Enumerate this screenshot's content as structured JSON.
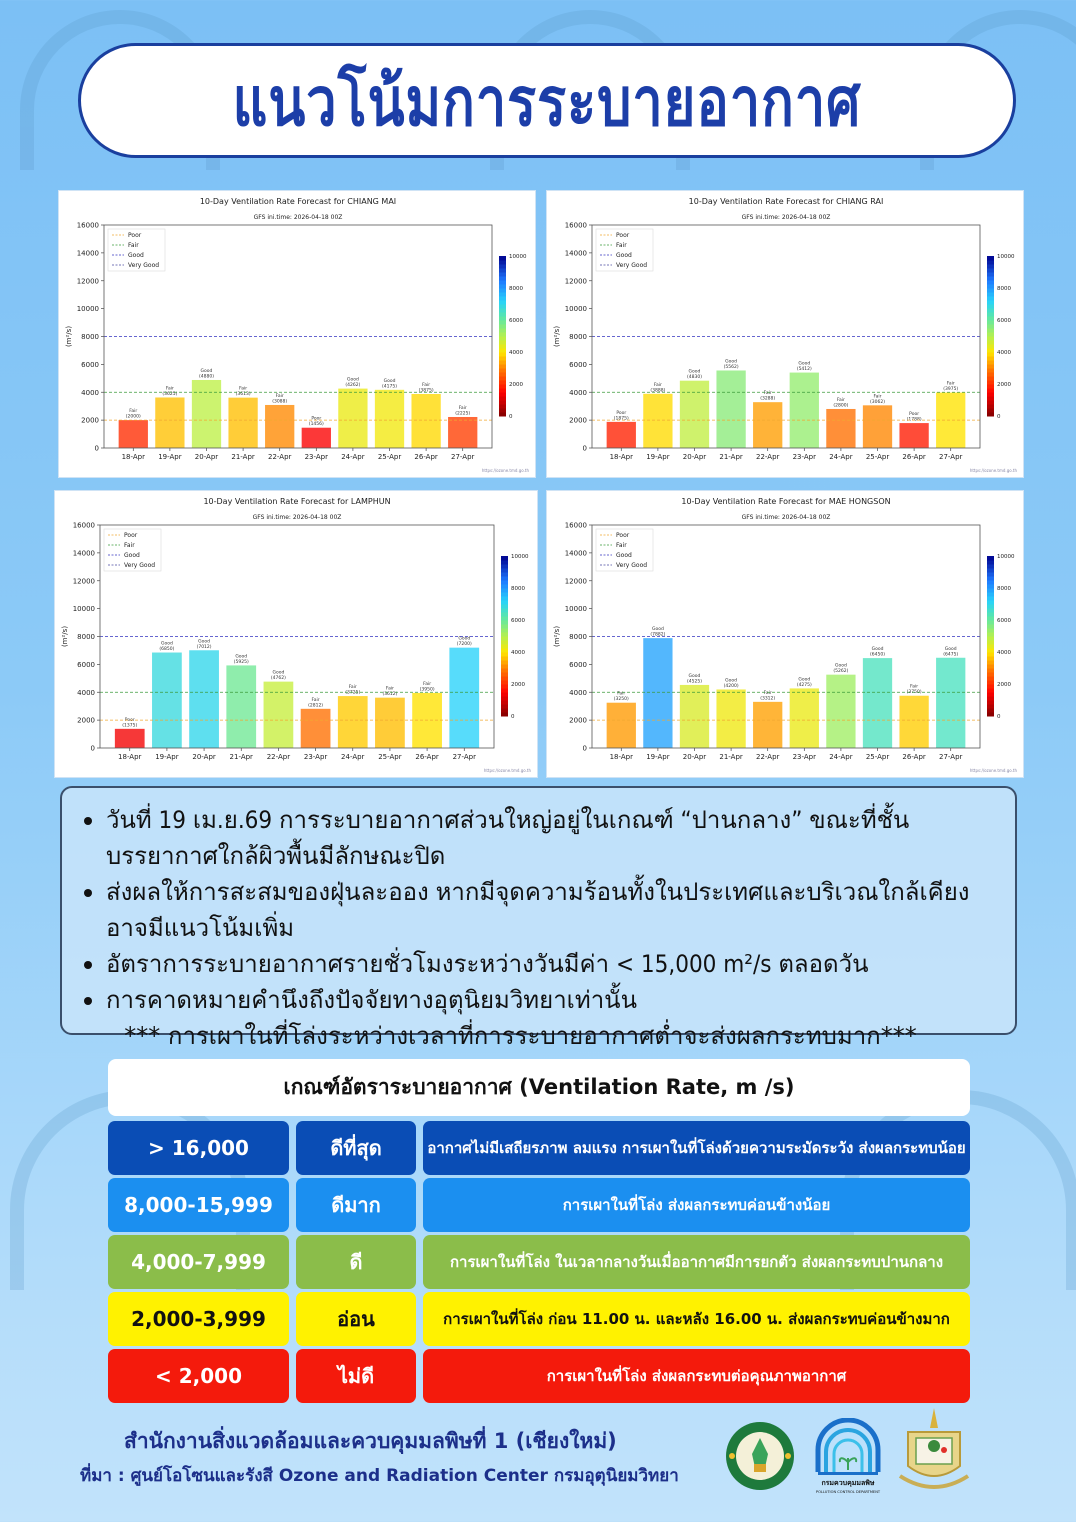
{
  "header": {
    "title": "แนวโน้มการระบายอากาศ"
  },
  "chart_data": [
    {
      "type": "bar",
      "title": "10-Day Ventilation Rate Forecast for CHIANG MAI",
      "subtitle": "GFS ini.time: 2026-04-18 00Z",
      "ylabel": "(m²/s)",
      "ylim": [
        0,
        16000
      ],
      "yticks": [
        "0",
        "2000",
        "4000",
        "6000",
        "8000",
        "10000",
        "12000",
        "14000",
        "16000"
      ],
      "categories": [
        "18-Apr",
        "19-Apr",
        "20-Apr",
        "21-Apr",
        "22-Apr",
        "23-Apr",
        "24-Apr",
        "25-Apr",
        "26-Apr",
        "27-Apr"
      ],
      "values": [
        2000,
        3625,
        4880,
        3613,
        3088,
        1456,
        4262,
        4175,
        3875,
        2225
      ],
      "labels": [
        "Fair",
        "Fair",
        "Good",
        "Fair",
        "Fair",
        "Poor",
        "Good",
        "Good",
        "Fair",
        "Fair"
      ],
      "value_labels": [
        "(2000)",
        "(3625)",
        "(4880)",
        "(3613)",
        "(3088)",
        "(1456)",
        "(4262)",
        "(4175)",
        "(3875)",
        "(2225)"
      ],
      "legend": [
        "Poor",
        "Fair",
        "Good",
        "Very Good"
      ],
      "thresholds": [
        2000,
        4000,
        8000
      ],
      "colorbar_ticks": [
        "0",
        "2000",
        "4000",
        "6000",
        "8000",
        "10000"
      ],
      "source": "https://ozone.tmd.go.th",
      "legend_position": "top-left"
    },
    {
      "type": "bar",
      "title": "10-Day Ventilation Rate Forecast for CHIANG RAI",
      "subtitle": "GFS ini.time: 2026-04-18 00Z",
      "ylabel": "(m²/s)",
      "ylim": [
        0,
        16000
      ],
      "yticks": [
        "0",
        "2000",
        "4000",
        "6000",
        "8000",
        "10000",
        "12000",
        "14000",
        "16000"
      ],
      "categories": [
        "18-Apr",
        "19-Apr",
        "20-Apr",
        "21-Apr",
        "22-Apr",
        "23-Apr",
        "24-Apr",
        "25-Apr",
        "26-Apr",
        "27-Apr"
      ],
      "values": [
        1875,
        3888,
        4830,
        5562,
        3288,
        5412,
        2800,
        3062,
        1788,
        3975
      ],
      "labels": [
        "Poor",
        "Fair",
        "Good",
        "Good",
        "Fair",
        "Good",
        "Fair",
        "Fair",
        "Poor",
        "Fair"
      ],
      "value_labels": [
        "(1875)",
        "(3888)",
        "(4830)",
        "(5562)",
        "(3288)",
        "(5412)",
        "(2800)",
        "(3062)",
        "(1788)",
        "(3975)"
      ],
      "legend": [
        "Poor",
        "Fair",
        "Good",
        "Very Good"
      ],
      "thresholds": [
        2000,
        4000,
        8000
      ],
      "colorbar_ticks": [
        "0",
        "2000",
        "4000",
        "6000",
        "8000",
        "10000"
      ],
      "source": "https://ozone.tmd.go.th",
      "legend_position": "top-left"
    },
    {
      "type": "bar",
      "title": "10-Day Ventilation Rate Forecast for LAMPHUN",
      "subtitle": "GFS ini.time: 2026-04-18 00Z",
      "ylabel": "(m²/s)",
      "ylim": [
        0,
        16000
      ],
      "yticks": [
        "0",
        "2000",
        "4000",
        "6000",
        "8000",
        "10000",
        "12000",
        "14000",
        "16000"
      ],
      "categories": [
        "18-Apr",
        "19-Apr",
        "20-Apr",
        "21-Apr",
        "22-Apr",
        "23-Apr",
        "24-Apr",
        "25-Apr",
        "26-Apr",
        "27-Apr"
      ],
      "values": [
        1375,
        6850,
        7012,
        5925,
        4762,
        2812,
        3725,
        3612,
        3950,
        7200
      ],
      "labels": [
        "Poor",
        "Good",
        "Good",
        "Good",
        "Good",
        "Fair",
        "Fair",
        "Fair",
        "Fair",
        "Good"
      ],
      "value_labels": [
        "(1375)",
        "(6850)",
        "(7012)",
        "(5925)",
        "(4762)",
        "(2812)",
        "(3725)",
        "(3612)",
        "(3950)",
        "(7200)"
      ],
      "legend": [
        "Poor",
        "Fair",
        "Good",
        "Very Good"
      ],
      "thresholds": [
        2000,
        4000,
        8000
      ],
      "colorbar_ticks": [
        "0",
        "2000",
        "4000",
        "6000",
        "8000",
        "10000"
      ],
      "source": "https://ozone.tmd.go.th",
      "legend_position": "top-left"
    },
    {
      "type": "bar",
      "title": "10-Day Ventilation Rate Forecast for MAE HONGSON",
      "subtitle": "GFS ini.time: 2026-04-18 00Z",
      "ylabel": "(m²/s)",
      "ylim": [
        0,
        16000
      ],
      "yticks": [
        "0",
        "2000",
        "4000",
        "6000",
        "8000",
        "10000",
        "12000",
        "14000",
        "16000"
      ],
      "categories": [
        "18-Apr",
        "19-Apr",
        "20-Apr",
        "21-Apr",
        "22-Apr",
        "23-Apr",
        "24-Apr",
        "25-Apr",
        "26-Apr",
        "27-Apr"
      ],
      "values": [
        3250,
        7882,
        4525,
        4200,
        3312,
        4275,
        5262,
        6450,
        3750,
        6475
      ],
      "labels": [
        "Fair",
        "Good",
        "Good",
        "Good",
        "Fair",
        "Good",
        "Good",
        "Good",
        "Fair",
        "Good"
      ],
      "value_labels": [
        "(3250)",
        "(7882)",
        "(4525)",
        "(4200)",
        "(3312)",
        "(4275)",
        "(5262)",
        "(6450)",
        "(3750)",
        "(6475)"
      ],
      "legend": [
        "Poor",
        "Fair",
        "Good",
        "Very Good"
      ],
      "thresholds": [
        2000,
        4000,
        8000
      ],
      "colorbar_ticks": [
        "0",
        "2000",
        "4000",
        "6000",
        "8000",
        "10000"
      ],
      "source": "https://ozone.tmd.go.th",
      "legend_position": "top-left"
    }
  ],
  "info": {
    "items": [
      "วันที่  19  เม.ย.69  การระบายอากาศส่วนใหญ่อยู่ในเกณฑ์  “ปานกลาง”  ขณะที่ชั้นบรรยากาศใกล้ผิวพื้นมีลักษณะปิด",
      "ส่งผลให้การสะสมของฝุ่นละออง หากมีจุดความร้อนทั้งในประเทศและบริเวณใกล้เคียงอาจมีแนวโน้มเพิ่ม",
      "อัตราการระบายอากาศรายชั่วโมงระหว่างวันมีค่า < 15,000 m²/s ตลอดวัน",
      "การคาดหมายคำนึงถึงปัจจัยทางอุตุนิยมวิทยาเท่านั้น"
    ],
    "note": "*** การเผาในที่โล่งระหว่างเวลาที่การระบายอากาศต่ำจะส่งผลกระทบมาก***"
  },
  "criteria": {
    "header": "เกณฑ์อัตราระบายอากาศ (Ventilation Rate, m /s)",
    "rows": [
      {
        "range": "> 16,000",
        "level": "ดีที่สุด",
        "desc": "อากาศไม่มีเสถียรภาพ ลมแรง การเผาในที่โล่งด้วยความระมัดระวัง ส่งผลกระทบน้อย",
        "color": "#0a4db5",
        "text_color": "#ffffff"
      },
      {
        "range": "8,000-15,999",
        "level": "ดีมาก",
        "desc": "การเผาในที่โล่ง ส่งผลกระทบค่อนข้างน้อย",
        "color": "#1b8ff0",
        "text_color": "#ffffff"
      },
      {
        "range": "4,000-7,999",
        "level": "ดี",
        "desc": "การเผาในที่โล่ง ในเวลากลางวันเมื่ออากาศมีการยกตัว ส่งผลกระทบปานกลาง",
        "color": "#8bbd4a",
        "text_color": "#ffffff"
      },
      {
        "range": "2,000-3,999",
        "level": "อ่อน",
        "desc": "การเผาในที่โล่ง ก่อน 11.00 น. และหลัง 16.00 น. ส่งผลกระทบค่อนข้างมาก",
        "color": "#fff200",
        "text_color": "#111111"
      },
      {
        "range": "< 2,000",
        "level": "ไม่ดี",
        "desc": "การเผาในที่โล่ง ส่งผลกระทบต่อคุณภาพอากาศ",
        "color": "#f41a0c",
        "text_color": "#ffffff"
      }
    ]
  },
  "footer": {
    "org": "สำนักงานสิ่งแวดล้อมและควบคุมมลพิษที่ 1 (เชียงใหม่)",
    "source": "ที่มา : ศูนย์โอโซนและรังสี Ozone and Radiation Center กรมอุตุนิยมวิทยา",
    "logos": [
      {
        "name": "กรมอุตุนิยมวิทยา",
        "sub": "METEOROLOGICAL DEPARTMENT"
      },
      {
        "name": "กรมควบคุมมลพิษ",
        "sub": "POLLUTION CONTROL DEPARTMENT"
      },
      {
        "name": "provincial-seal"
      }
    ]
  }
}
